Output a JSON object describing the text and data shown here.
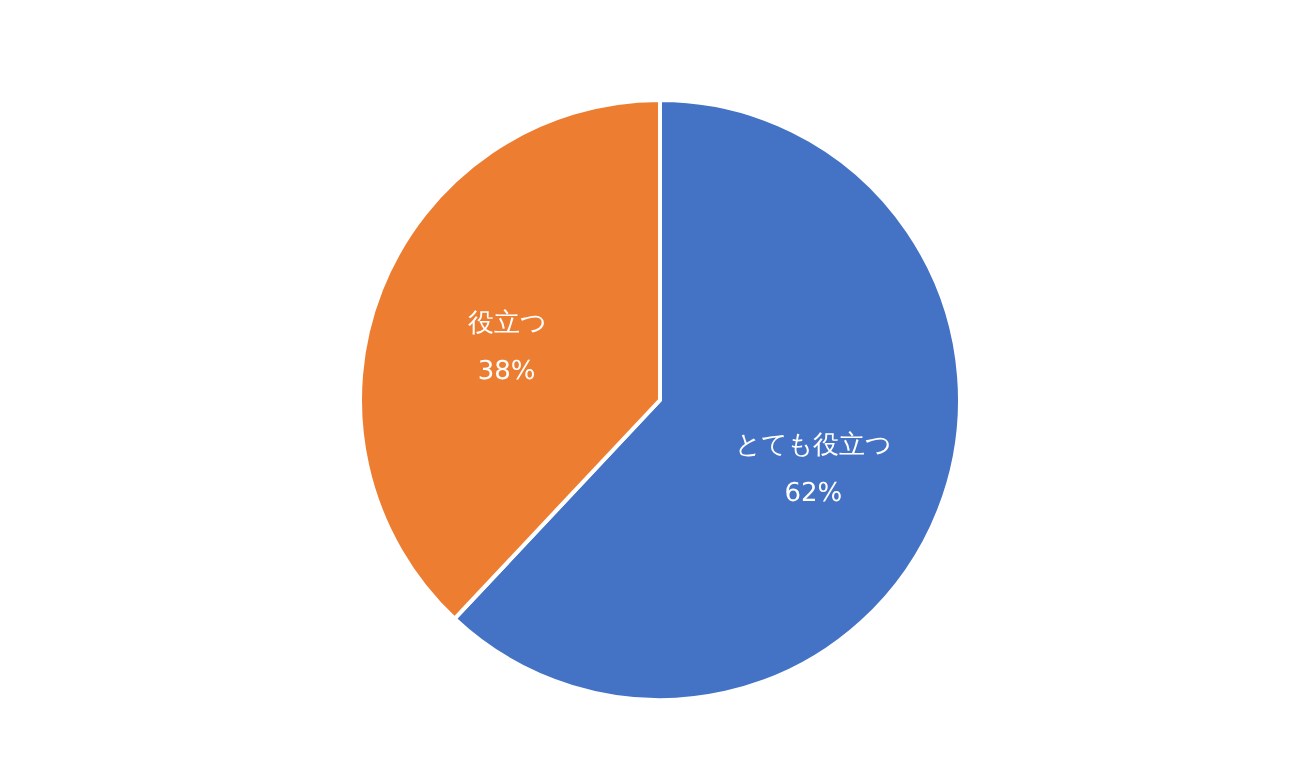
{
  "chart_data": {
    "type": "pie",
    "categories": [
      "とても役立つ",
      "役立つ"
    ],
    "values": [
      62,
      38
    ],
    "colors": [
      "#4472c4",
      "#ed7d31"
    ],
    "value_labels": [
      "62%",
      "38%"
    ]
  }
}
